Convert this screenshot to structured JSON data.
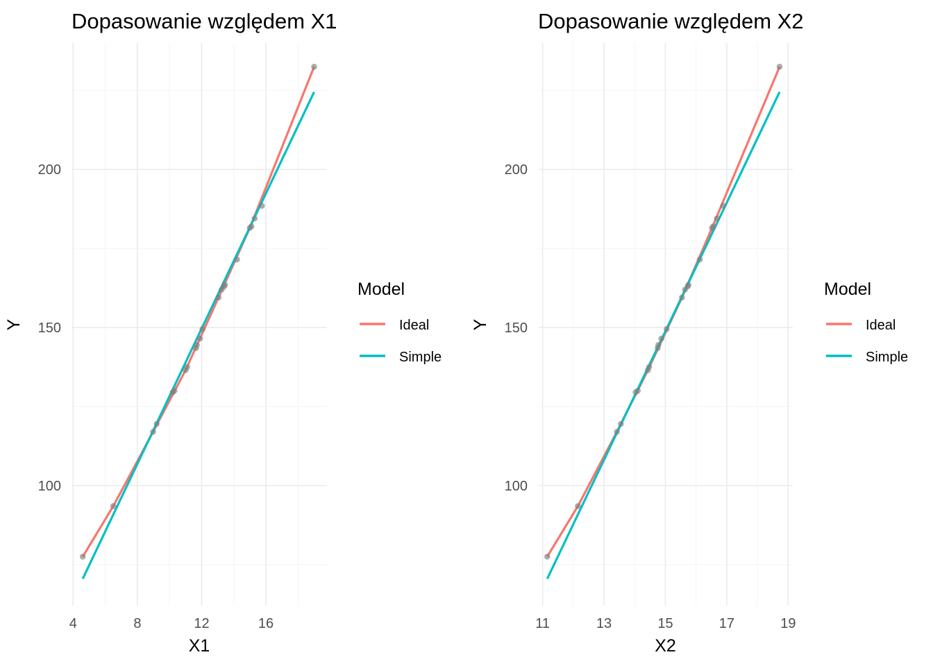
{
  "chart_data": [
    {
      "type": "scatter",
      "title": "Dopasowanie względem X1",
      "xlabel": "X1",
      "ylabel": "Y",
      "xlim": [
        3.9,
        19.8
      ],
      "ylim": [
        62,
        240
      ],
      "xticks": [
        4,
        8,
        12,
        16
      ],
      "yticks": [
        100,
        150,
        200
      ],
      "grid": true,
      "legend": {
        "title": "Model",
        "position": "right",
        "entries": [
          {
            "label": "Ideal",
            "color": "#F8766D"
          },
          {
            "label": "Simple",
            "color": "#00BFC4"
          }
        ]
      },
      "points": {
        "color": "#808080",
        "x": [
          4.6,
          6.5,
          8.98,
          9.2,
          10.2,
          10.3,
          11.0,
          11.1,
          11.65,
          11.7,
          11.9,
          12.05,
          13.05,
          13.25,
          13.4,
          13.45,
          14.2,
          15.0,
          15.1,
          15.3,
          15.75,
          19.0
        ],
        "y": [
          77.5,
          93.5,
          117.0,
          119.5,
          129.5,
          130.0,
          136.5,
          137.5,
          143.5,
          144.5,
          146.5,
          149.5,
          159.5,
          162.0,
          163.0,
          163.5,
          171.5,
          181.5,
          182.0,
          184.5,
          188.5,
          232.5
        ]
      },
      "series": [
        {
          "name": "Ideal",
          "color": "#F8766D",
          "x": [
            4.6,
            6.5,
            8.98,
            11.0,
            13.05,
            15.0,
            19.0
          ],
          "y": [
            77.5,
            93.5,
            117.0,
            136.5,
            159.5,
            181.5,
            232.5
          ]
        },
        {
          "name": "Simple",
          "color": "#00BFC4",
          "x": [
            4.6,
            19.0
          ],
          "y": [
            70.5,
            224.5
          ]
        }
      ]
    },
    {
      "type": "scatter",
      "title": "Dopasowanie względem X2",
      "xlabel": "X2",
      "ylabel": "Y",
      "xlim": [
        10.85,
        19.15
      ],
      "ylim": [
        62,
        240
      ],
      "xticks": [
        11,
        13,
        15,
        17,
        19
      ],
      "yticks": [
        100,
        150,
        200
      ],
      "grid": true,
      "legend": {
        "title": "Model",
        "position": "right",
        "entries": [
          {
            "label": "Ideal",
            "color": "#F8766D"
          },
          {
            "label": "Simple",
            "color": "#00BFC4"
          }
        ]
      },
      "points": {
        "color": "#808080",
        "x": [
          11.15,
          12.15,
          13.42,
          13.55,
          14.03,
          14.1,
          14.43,
          14.47,
          14.75,
          14.77,
          14.87,
          15.04,
          15.54,
          15.64,
          15.73,
          15.75,
          16.12,
          16.52,
          16.56,
          16.68,
          16.88,
          18.72
        ],
        "y": [
          77.5,
          93.5,
          117.0,
          119.5,
          129.5,
          130.0,
          136.5,
          137.5,
          143.5,
          144.5,
          146.5,
          149.5,
          159.5,
          162.0,
          163.0,
          163.5,
          171.5,
          181.5,
          182.0,
          184.5,
          188.5,
          232.5
        ]
      },
      "series": [
        {
          "name": "Ideal",
          "color": "#F8766D",
          "x": [
            11.15,
            12.15,
            13.42,
            14.43,
            15.54,
            16.52,
            18.72
          ],
          "y": [
            77.5,
            93.5,
            117.0,
            136.5,
            159.5,
            181.5,
            232.5
          ]
        },
        {
          "name": "Simple",
          "color": "#00BFC4",
          "x": [
            11.15,
            18.72
          ],
          "y": [
            70.5,
            224.5
          ]
        }
      ]
    }
  ]
}
